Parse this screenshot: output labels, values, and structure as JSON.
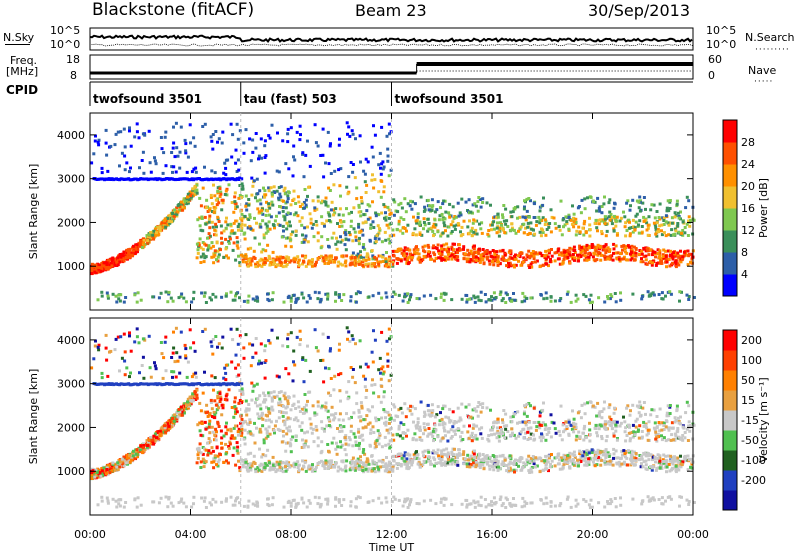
{
  "header": {
    "station": "Blackstone (fitACF)",
    "beam": "Beam 23",
    "date": "30/Sep/2013"
  },
  "top_panels": {
    "nsky_label": "N.Sky",
    "nsky_ticks": [
      "10^5",
      "10^0"
    ],
    "nsearch_label": "N.Search",
    "nsearch_ticks": [
      "10^5",
      "10^0"
    ],
    "freq_label_line1": "Freq.",
    "freq_label_line2": "[MHz]",
    "freq_ticks": [
      "18",
      "8"
    ],
    "nave_label": "Nave",
    "nave_ticks": [
      "60",
      "0"
    ],
    "cpid_label": "CPID",
    "cpid_segments": [
      {
        "name": "twofsound 3501",
        "start_hour": 0,
        "end_hour": 6
      },
      {
        "name": "tau (fast) 503",
        "start_hour": 6,
        "end_hour": 12
      },
      {
        "name": "twofsound 3501",
        "start_hour": 12,
        "end_hour": 24
      }
    ]
  },
  "colors": {
    "power": [
      "#0000ff",
      "#2d5fa8",
      "#3a8f5a",
      "#7fc850",
      "#f0c030",
      "#ff9000",
      "#ff5000",
      "#ff0000"
    ],
    "velocity": [
      "#1010a0",
      "#2040c0",
      "#206020",
      "#50c050",
      "#c8c8c8",
      "#e8a040",
      "#ff8000",
      "#ff4000",
      "#ff0000"
    ]
  },
  "chart_data": [
    {
      "type": "heatmap",
      "name": "power",
      "ylabel": "Slant Range [km]",
      "yticks": [
        "1000",
        "2000",
        "3000",
        "4000"
      ],
      "ylim": [
        0,
        4500
      ],
      "xlim_hours": [
        0,
        24
      ],
      "colorbar_label": "Power [dB]",
      "colorbar_ticks": [
        "4",
        "8",
        "12",
        "16",
        "20",
        "24",
        "28"
      ]
    },
    {
      "type": "heatmap",
      "name": "velocity",
      "ylabel": "Slant Range [km]",
      "yticks": [
        "1000",
        "2000",
        "3000",
        "4000"
      ],
      "ylim": [
        0,
        4500
      ],
      "xlim_hours": [
        0,
        24
      ],
      "colorbar_label": "Velocity [m s⁻¹]",
      "colorbar_ticks": [
        "200",
        "100",
        "50",
        "15",
        "-15",
        "-50",
        "-100",
        "-200"
      ]
    }
  ],
  "xaxis": {
    "label": "Time UT",
    "ticks": [
      "00:00",
      "04:00",
      "08:00",
      "12:00",
      "16:00",
      "20:00",
      "00:00"
    ]
  }
}
